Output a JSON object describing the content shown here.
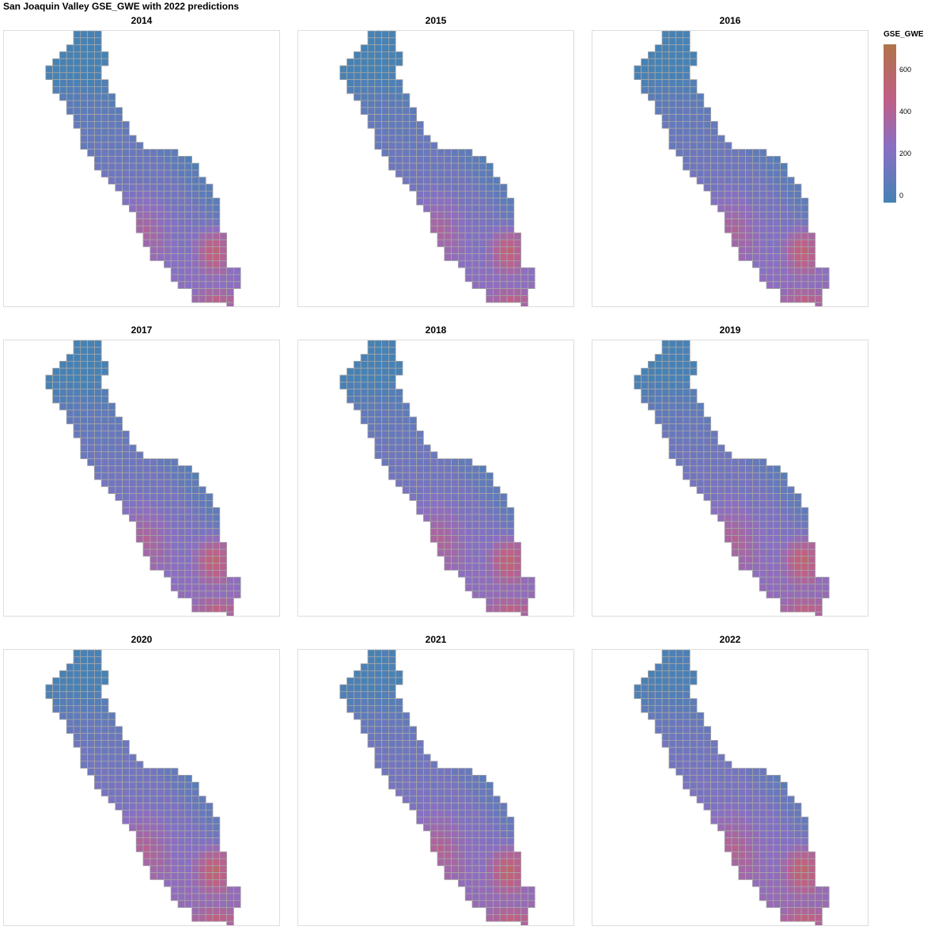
{
  "title": "San Joaquin Valley GSE_GWE with 2022 predictions",
  "legend": {
    "title": "GSE_GWE",
    "ticks": [
      "0",
      "200",
      "400",
      "600"
    ],
    "colors": [
      "#4682b4",
      "#8a6fc4",
      "#c05f87",
      "#b07448"
    ]
  },
  "chart_data": {
    "type": "heatmap",
    "title": "San Joaquin Valley GSE_GWE with 2022 predictions",
    "facets": [
      "2014",
      "2015",
      "2016",
      "2017",
      "2018",
      "2019",
      "2020",
      "2021",
      "2022"
    ],
    "color_field": "GSE_GWE",
    "color_range": [
      0,
      720
    ],
    "grid_border_color": "#a6a6a6",
    "note_values": "per-cell values estimated from color: ~0 north-west valley, ~250-450 central/south-west, ~650-700 peak in south-east"
  }
}
